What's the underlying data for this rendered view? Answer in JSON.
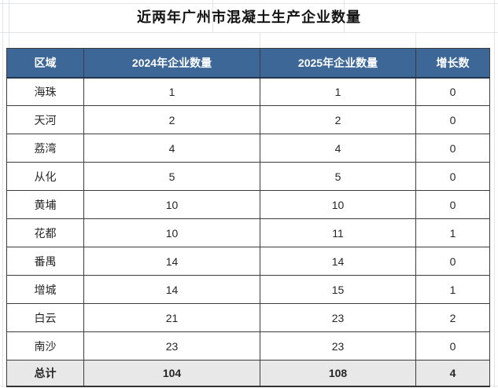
{
  "title": "近两年广州市混凝土生产企业数量",
  "colors": {
    "header_bg": "#3c6797",
    "header_text": "#ffffff",
    "total_row_bg": "#e8e8e8",
    "border": "#3c3c3c",
    "text": "#262626",
    "gridline": "#e3e6e9"
  },
  "table": {
    "headers": [
      "区域",
      "2024年企业数量",
      "2025年企业数量",
      "增长数"
    ],
    "rows": [
      {
        "region": "海珠",
        "count_2024": "1",
        "count_2025": "1",
        "growth": "0",
        "is_total": false
      },
      {
        "region": "天河",
        "count_2024": "2",
        "count_2025": "2",
        "growth": "0",
        "is_total": false
      },
      {
        "region": "荔湾",
        "count_2024": "4",
        "count_2025": "4",
        "growth": "0",
        "is_total": false
      },
      {
        "region": "从化",
        "count_2024": "5",
        "count_2025": "5",
        "growth": "0",
        "is_total": false
      },
      {
        "region": "黄埔",
        "count_2024": "10",
        "count_2025": "10",
        "growth": "0",
        "is_total": false
      },
      {
        "region": "花都",
        "count_2024": "10",
        "count_2025": "11",
        "growth": "1",
        "is_total": false
      },
      {
        "region": "番禺",
        "count_2024": "14",
        "count_2025": "14",
        "growth": "0",
        "is_total": false
      },
      {
        "region": "增城",
        "count_2024": "14",
        "count_2025": "15",
        "growth": "1",
        "is_total": false
      },
      {
        "region": "白云",
        "count_2024": "21",
        "count_2025": "23",
        "growth": "2",
        "is_total": false
      },
      {
        "region": "南沙",
        "count_2024": "23",
        "count_2025": "23",
        "growth": "0",
        "is_total": false
      },
      {
        "region": "总计",
        "count_2024": "104",
        "count_2025": "108",
        "growth": "4",
        "is_total": true
      }
    ]
  },
  "chart_data": {
    "type": "table",
    "title": "近两年广州市混凝土生产企业数量",
    "categories": [
      "海珠",
      "天河",
      "荔湾",
      "从化",
      "黄埔",
      "花都",
      "番禺",
      "增城",
      "白云",
      "南沙"
    ],
    "series": [
      {
        "name": "2024年企业数量",
        "values": [
          1,
          2,
          4,
          5,
          10,
          10,
          14,
          14,
          21,
          23
        ]
      },
      {
        "name": "2025年企业数量",
        "values": [
          1,
          2,
          4,
          5,
          10,
          11,
          14,
          15,
          23,
          23
        ]
      },
      {
        "name": "增长数",
        "values": [
          0,
          0,
          0,
          0,
          0,
          1,
          0,
          1,
          2,
          0
        ]
      }
    ],
    "totals": {
      "name": "总计",
      "values": [
        104,
        108,
        4
      ]
    },
    "column_headers": [
      "区域",
      "2024年企业数量",
      "2025年企业数量",
      "增长数"
    ]
  }
}
